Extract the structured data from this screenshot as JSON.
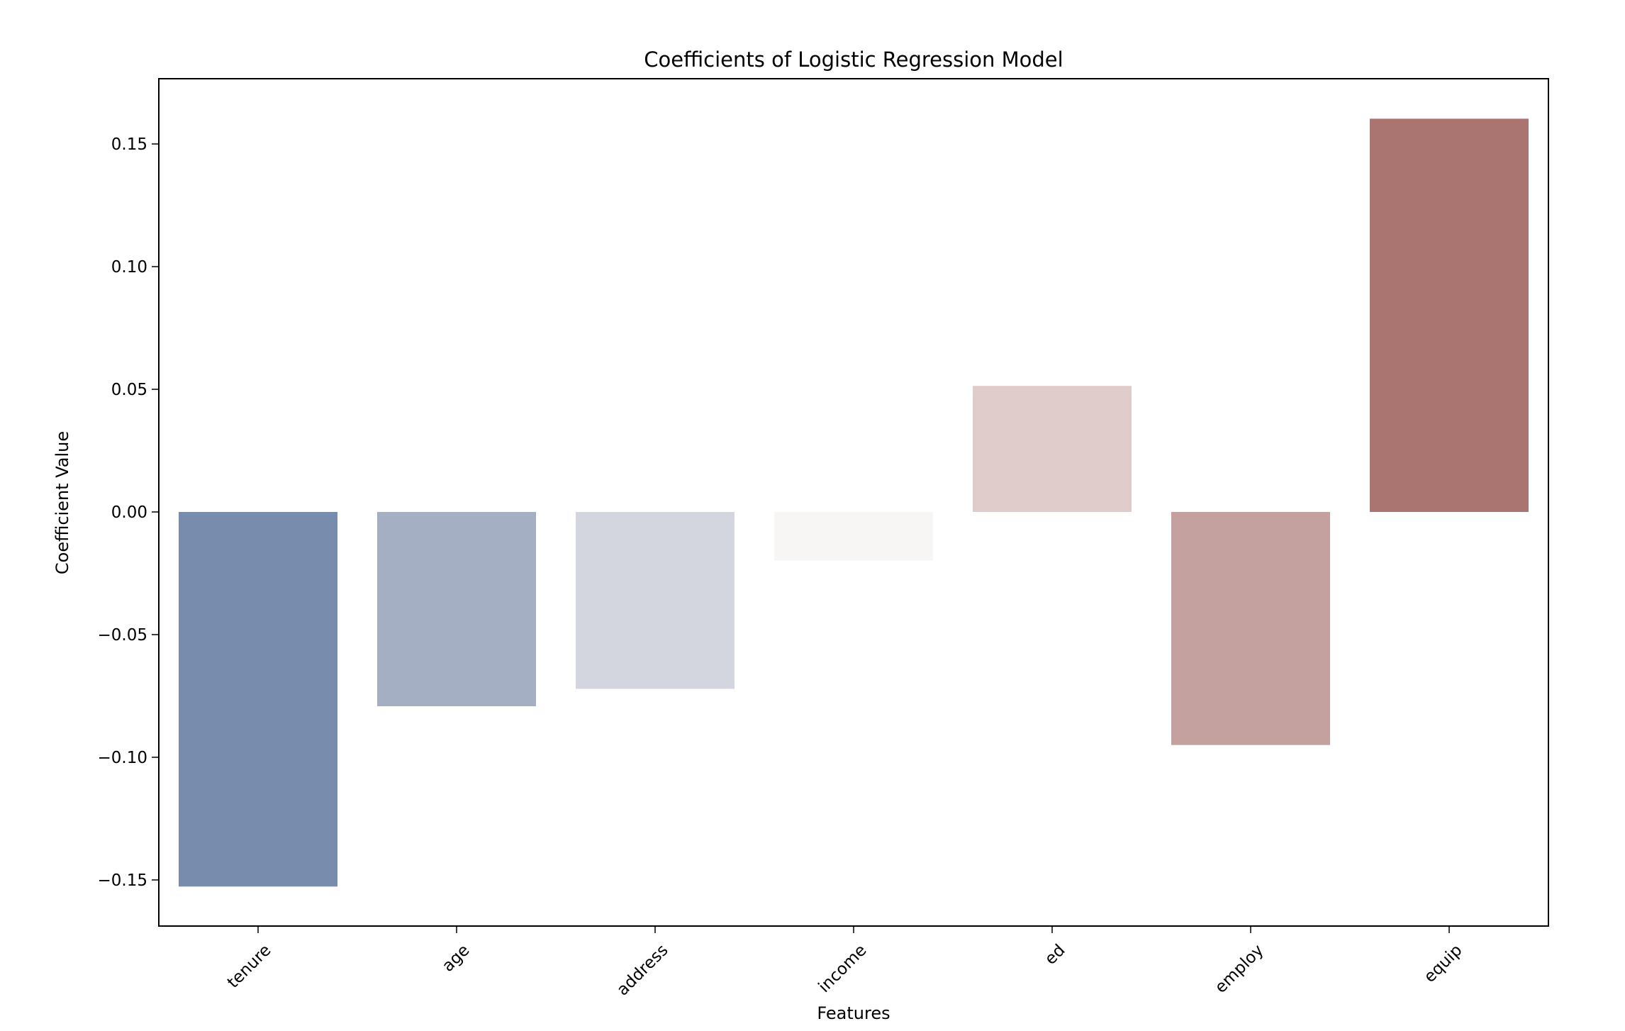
{
  "chart_data": {
    "type": "bar",
    "title": "Coefficients of Logistic Regression Model",
    "xlabel": "Features",
    "ylabel": "Coefficient Value",
    "categories": [
      "tenure",
      "age",
      "address",
      "income",
      "ed",
      "employ",
      "equip"
    ],
    "values": [
      -0.1527,
      -0.0792,
      -0.0721,
      -0.0198,
      0.0514,
      -0.095,
      0.1603
    ],
    "colors": [
      "#788cae",
      "#a4afc4",
      "#d4d6df",
      "#f7f6f4",
      "#e0cdcb",
      "#c4a09e",
      "#aa7571"
    ],
    "ylim": [
      -0.1688,
      0.1766
    ],
    "yticks": [
      -0.15,
      -0.1,
      -0.05,
      0.0,
      0.05,
      0.1,
      0.15
    ],
    "ytick_labels": [
      "−0.15",
      "−0.10",
      "−0.05",
      "0.00",
      "0.05",
      "0.10",
      "0.15"
    ],
    "grid": false,
    "xtick_rotation": 45
  }
}
